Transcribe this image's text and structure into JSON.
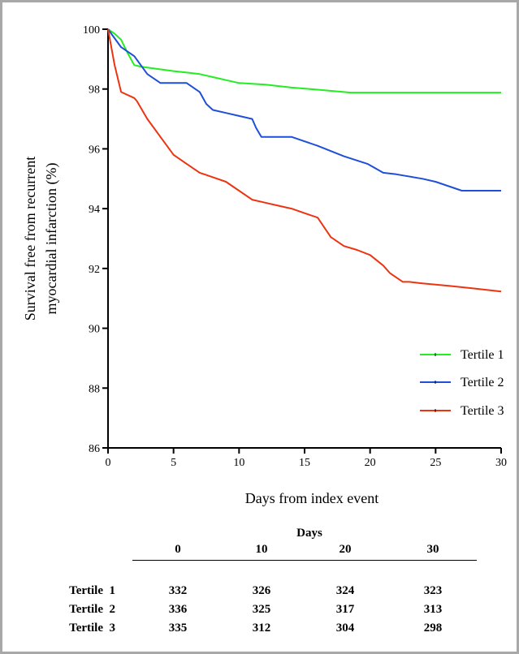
{
  "chart_data": {
    "type": "line",
    "title": "",
    "xlabel": "Days from index event",
    "ylabel_lines": [
      "Survival free from recurrent",
      "myocardial infarction (%)"
    ],
    "xlim": [
      0,
      30
    ],
    "ylim": [
      86,
      100
    ],
    "x_ticks": [
      "0",
      "5",
      "10",
      "15",
      "20",
      "25",
      "30"
    ],
    "y_ticks": [
      "86",
      "88",
      "90",
      "92",
      "94",
      "96",
      "98",
      "100"
    ],
    "grid": false,
    "legend_position": "bottom-right",
    "series": [
      {
        "name": "Tertile 1",
        "color": "#22ee22",
        "points": [
          [
            0,
            100
          ],
          [
            0.5,
            99.85
          ],
          [
            1,
            99.65
          ],
          [
            1.5,
            99.2
          ],
          [
            2,
            98.8
          ],
          [
            2.5,
            98.75
          ],
          [
            3,
            98.72
          ],
          [
            5,
            98.6
          ],
          [
            6,
            98.55
          ],
          [
            7,
            98.5
          ],
          [
            8,
            98.4
          ],
          [
            9,
            98.3
          ],
          [
            10,
            98.2
          ],
          [
            12,
            98.15
          ],
          [
            14,
            98.05
          ],
          [
            16,
            97.98
          ],
          [
            18,
            97.9
          ],
          [
            18.5,
            97.88
          ],
          [
            20,
            97.88
          ],
          [
            25,
            97.88
          ],
          [
            30,
            97.88
          ]
        ]
      },
      {
        "name": "Tertile 2",
        "color": "#1f4fd8",
        "points": [
          [
            0,
            100
          ],
          [
            0.5,
            99.7
          ],
          [
            1,
            99.4
          ],
          [
            2,
            99.1
          ],
          [
            3,
            98.5
          ],
          [
            4,
            98.2
          ],
          [
            5,
            98.2
          ],
          [
            6,
            98.2
          ],
          [
            7,
            97.9
          ],
          [
            7.5,
            97.5
          ],
          [
            8,
            97.3
          ],
          [
            9,
            97.2
          ],
          [
            10,
            97.1
          ],
          [
            11,
            97.0
          ],
          [
            11.3,
            96.7
          ],
          [
            11.7,
            96.4
          ],
          [
            12,
            96.4
          ],
          [
            13,
            96.4
          ],
          [
            14,
            96.4
          ],
          [
            16,
            96.1
          ],
          [
            18,
            95.75
          ],
          [
            19.8,
            95.5
          ],
          [
            21,
            95.2
          ],
          [
            22,
            95.15
          ],
          [
            24,
            95.0
          ],
          [
            25,
            94.9
          ],
          [
            26,
            94.75
          ],
          [
            27,
            94.6
          ],
          [
            28,
            94.6
          ],
          [
            30,
            94.6
          ]
        ]
      },
      {
        "name": "Tertile 3",
        "color": "#ee3311",
        "points": [
          [
            0,
            100
          ],
          [
            0.5,
            98.8
          ],
          [
            1,
            97.9
          ],
          [
            2,
            97.7
          ],
          [
            2.2,
            97.6
          ],
          [
            3,
            97.0
          ],
          [
            4,
            96.4
          ],
          [
            5,
            95.8
          ],
          [
            6,
            95.5
          ],
          [
            7,
            95.2
          ],
          [
            8,
            95.05
          ],
          [
            9,
            94.9
          ],
          [
            10,
            94.6
          ],
          [
            11,
            94.3
          ],
          [
            12,
            94.2
          ],
          [
            13,
            94.1
          ],
          [
            14,
            94.0
          ],
          [
            15,
            93.85
          ],
          [
            16,
            93.7
          ],
          [
            17,
            93.05
          ],
          [
            18,
            92.75
          ],
          [
            19,
            92.62
          ],
          [
            20,
            92.45
          ],
          [
            21,
            92.1
          ],
          [
            21.5,
            91.85
          ],
          [
            22,
            91.7
          ],
          [
            22.5,
            91.55
          ],
          [
            23,
            91.55
          ],
          [
            24,
            91.5
          ],
          [
            26,
            91.42
          ],
          [
            28,
            91.33
          ],
          [
            30,
            91.23
          ]
        ]
      }
    ],
    "table": {
      "header_label": "Days",
      "columns": [
        "0",
        "10",
        "20",
        "30"
      ],
      "rows": [
        {
          "label": "Tertile  1",
          "values": [
            "332",
            "326",
            "324",
            "323"
          ]
        },
        {
          "label": "Tertile  2",
          "values": [
            "336",
            "325",
            "317",
            "313"
          ]
        },
        {
          "label": "Tertile  3",
          "values": [
            "335",
            "312",
            "304",
            "298"
          ]
        }
      ]
    }
  }
}
